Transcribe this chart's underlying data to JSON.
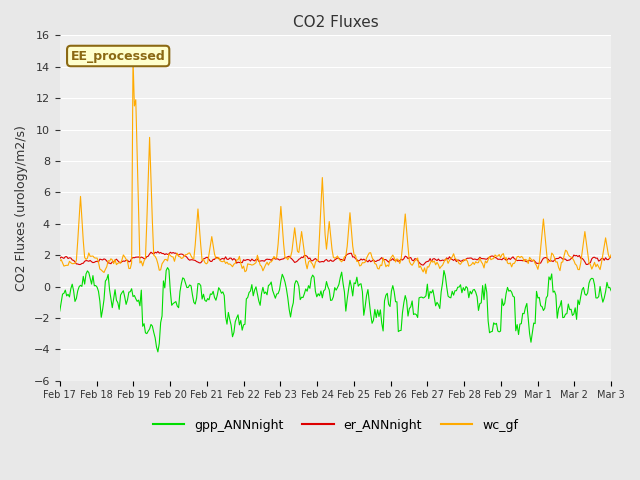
{
  "title": "CO2 Fluxes",
  "ylabel": "CO2 Fluxes (urology/m2/s)",
  "ylim": [
    -6,
    16
  ],
  "yticks": [
    -6,
    -4,
    -2,
    0,
    2,
    4,
    6,
    8,
    10,
    12,
    14,
    16
  ],
  "background_color": "#e8e8e8",
  "plot_bg_color": "#f0f0f0",
  "annotation_text": "EE_processed",
  "annotation_color": "#8b6914",
  "annotation_bg": "#ffffcc",
  "colors": {
    "gpp": "#00dd00",
    "er": "#dd0000",
    "wc": "#ffaa00"
  },
  "legend_labels": [
    "gpp_ANNnight",
    "er_ANNnight",
    "wc_gf"
  ],
  "x_tick_labels": [
    "Feb 17",
    "Feb 18",
    "Feb 19",
    "Feb 20",
    "Feb 21",
    "Feb 22",
    "Feb 23",
    "Feb 24",
    "Feb 25",
    "Feb 26",
    "Feb 27",
    "Feb 28",
    "Feb 29",
    "Mar 1",
    "Mar 2",
    "Mar 3"
  ],
  "n_points": 400,
  "seed": 42
}
